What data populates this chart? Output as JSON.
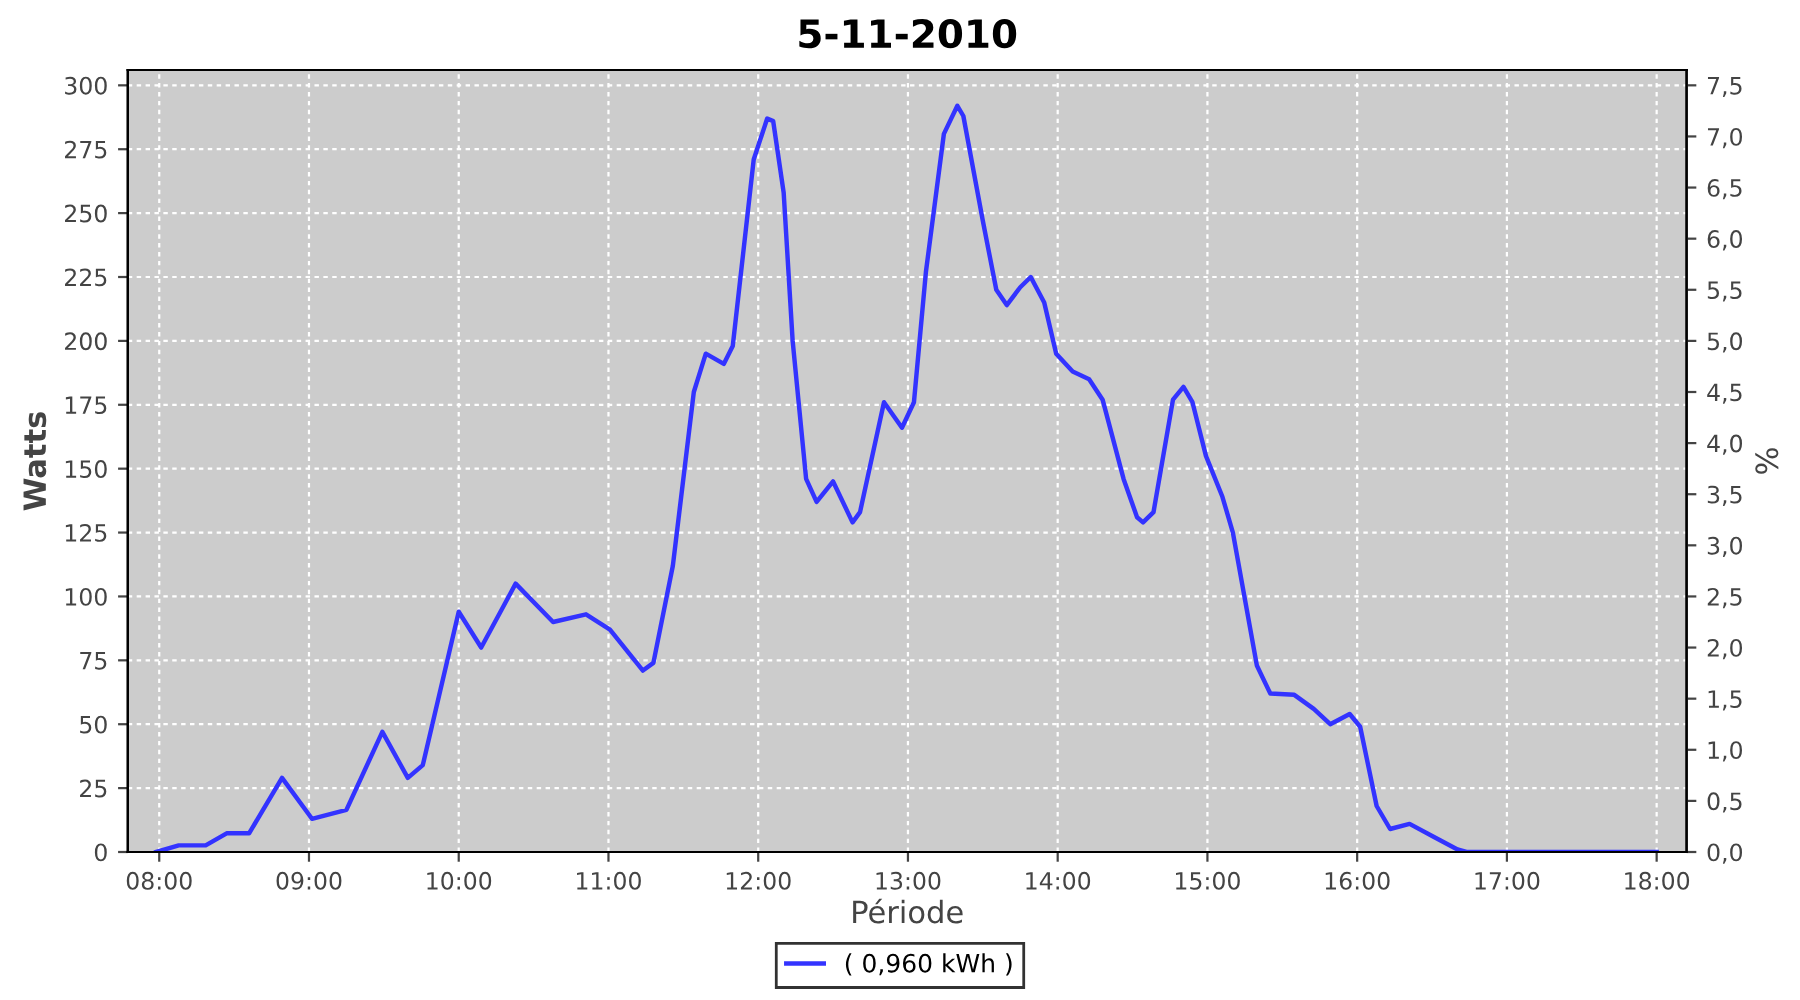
{
  "chart_data": {
    "type": "line",
    "title": "5-11-2010",
    "xlabel": "Période",
    "ylabel": "Watts",
    "y2label": "%",
    "series": [
      {
        "name": "( 0,960 kWh )",
        "color": "#3333ff",
        "x": [
          7.98,
          8.13,
          8.31,
          8.45,
          8.6,
          8.82,
          9.02,
          9.25,
          9.49,
          9.66,
          9.76,
          10.0,
          10.15,
          10.38,
          10.63,
          10.85,
          11.01,
          11.23,
          11.3,
          11.43,
          11.57,
          11.65,
          11.77,
          11.83,
          11.97,
          12.06,
          12.1,
          12.17,
          12.23,
          12.32,
          12.39,
          12.5,
          12.63,
          12.68,
          12.84,
          12.96,
          13.04,
          13.12,
          13.24,
          13.33,
          13.37,
          13.5,
          13.59,
          13.66,
          13.75,
          13.82,
          13.91,
          13.99,
          14.1,
          14.21,
          14.3,
          14.44,
          14.53,
          14.57,
          14.64,
          14.77,
          14.84,
          14.9,
          14.99,
          15.1,
          15.17,
          15.33,
          15.42,
          15.58,
          15.71,
          15.82,
          15.95,
          16.02,
          16.13,
          16.22,
          16.35,
          16.51,
          16.67,
          16.73,
          18.0
        ],
        "values": [
          0,
          2.6,
          2.6,
          7.3,
          7.3,
          29,
          13,
          16.5,
          47,
          29,
          34,
          94,
          80,
          105,
          90,
          93,
          87,
          71,
          74,
          112,
          180,
          195,
          191,
          198,
          271,
          287,
          286,
          258,
          200,
          146,
          137,
          145,
          129,
          133,
          176,
          166,
          176,
          227,
          281,
          292,
          288,
          247,
          220,
          214,
          221,
          225,
          215,
          195,
          188,
          185,
          177,
          146,
          131,
          129,
          133,
          177,
          182,
          176,
          155,
          139,
          125,
          73,
          62,
          61.5,
          56,
          50,
          54,
          49,
          18,
          9,
          11,
          6,
          1,
          0,
          0
        ]
      }
    ],
    "xlim": [
      7.79,
      18.2
    ],
    "xticks": [
      {
        "value": 8,
        "label": "08:00"
      },
      {
        "value": 9,
        "label": "09:00"
      },
      {
        "value": 10,
        "label": "10:00"
      },
      {
        "value": 11,
        "label": "11:00"
      },
      {
        "value": 12,
        "label": "12:00"
      },
      {
        "value": 13,
        "label": "13:00"
      },
      {
        "value": 14,
        "label": "14:00"
      },
      {
        "value": 15,
        "label": "15:00"
      },
      {
        "value": 16,
        "label": "16:00"
      },
      {
        "value": 17,
        "label": "17:00"
      },
      {
        "value": 18,
        "label": "18:00"
      }
    ],
    "ylim": [
      0,
      306
    ],
    "yticks": [
      0,
      25,
      50,
      75,
      100,
      125,
      150,
      175,
      200,
      225,
      250,
      275,
      300
    ],
    "y2lim": [
      0,
      7.65
    ],
    "y2ticks": [
      {
        "value": 0,
        "label": "0,0"
      },
      {
        "value": 0.5,
        "label": "0,5"
      },
      {
        "value": 1,
        "label": "1,0"
      },
      {
        "value": 1.5,
        "label": "1,5"
      },
      {
        "value": 2,
        "label": "2,0"
      },
      {
        "value": 2.5,
        "label": "2,5"
      },
      {
        "value": 3,
        "label": "3,0"
      },
      {
        "value": 3.5,
        "label": "3,5"
      },
      {
        "value": 4,
        "label": "4,0"
      },
      {
        "value": 4.5,
        "label": "4,5"
      },
      {
        "value": 5,
        "label": "5,0"
      },
      {
        "value": 5.5,
        "label": "5,5"
      },
      {
        "value": 6,
        "label": "6,0"
      },
      {
        "value": 6.5,
        "label": "6,5"
      },
      {
        "value": 7,
        "label": "7,0"
      },
      {
        "value": 7.5,
        "label": "7,5"
      }
    ],
    "grid": true,
    "legend": "bottom",
    "marker": "none",
    "line_style": "solid"
  }
}
